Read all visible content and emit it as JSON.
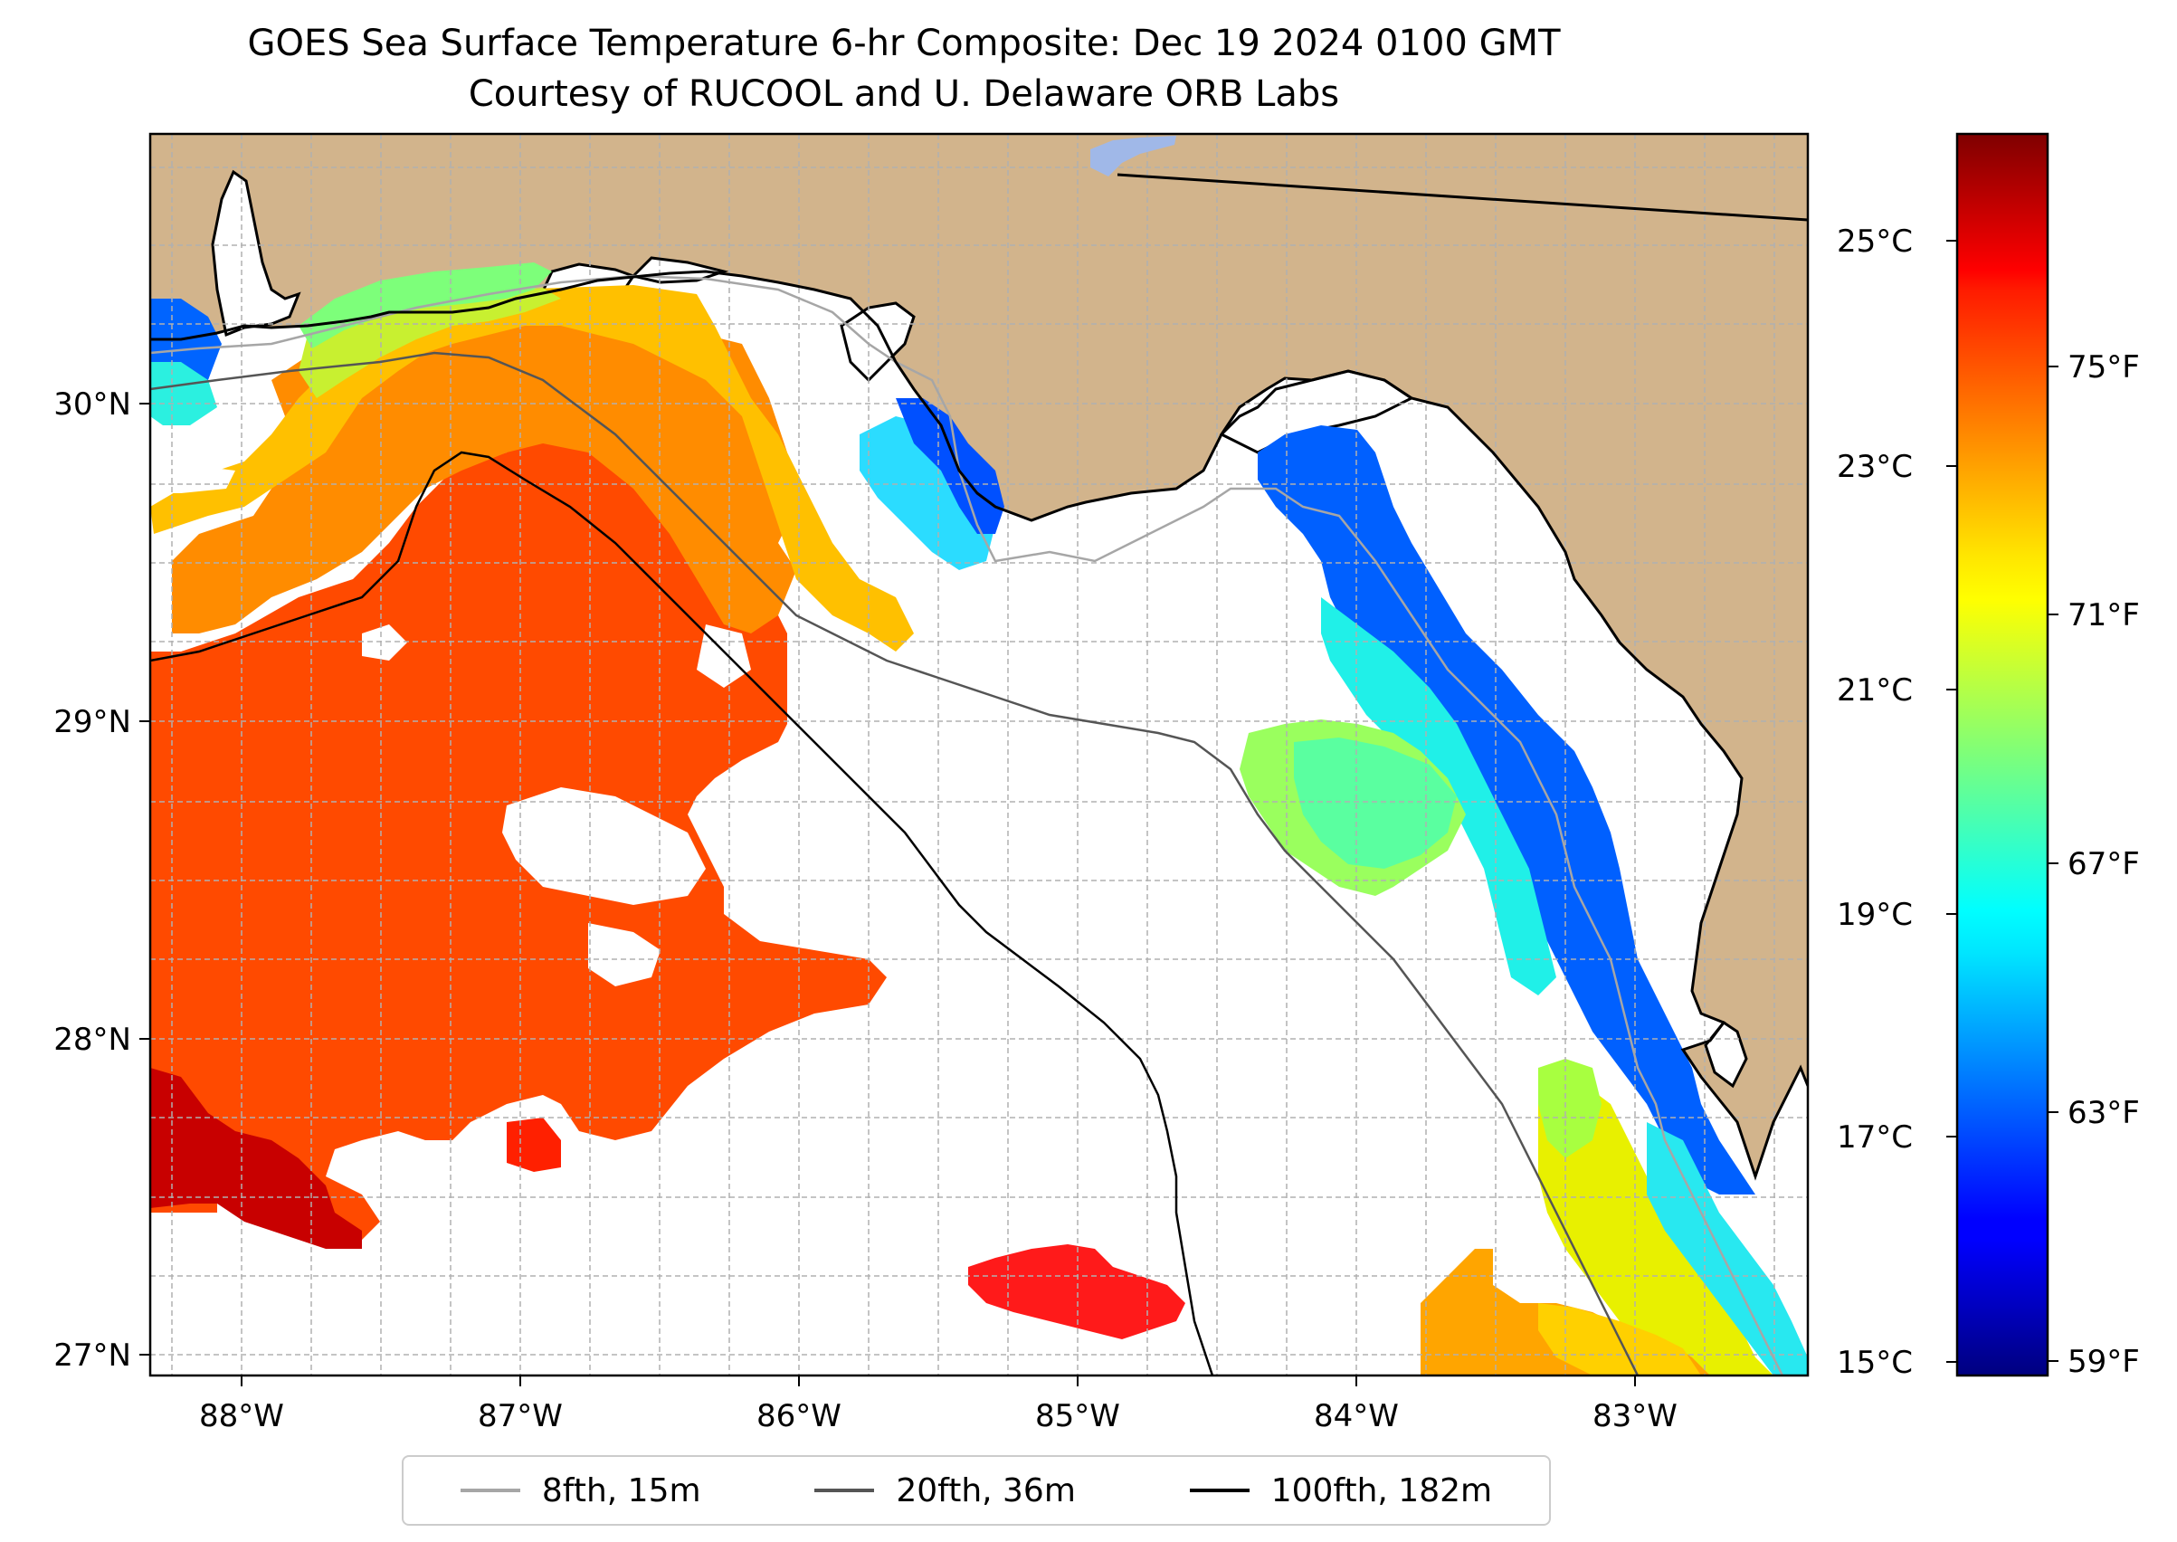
{
  "title": {
    "line1": "GOES Sea Surface Temperature 6-hr Composite: Dec 19 2024 0100 GMT",
    "line2": "Courtesy of RUCOOL and U. Delaware ORB Labs"
  },
  "map": {
    "lon_range": [
      -88.33,
      -82.42
    ],
    "lat_range": [
      26.93,
      30.86
    ],
    "lon_ticks": [
      {
        "value": -88,
        "label": "88°W"
      },
      {
        "value": -87,
        "label": "87°W"
      },
      {
        "value": -86,
        "label": "86°W"
      },
      {
        "value": -85,
        "label": "85°W"
      },
      {
        "value": -84,
        "label": "84°W"
      },
      {
        "value": -83,
        "label": "83°W"
      }
    ],
    "lat_ticks": [
      {
        "value": 27,
        "label": "27°N"
      },
      {
        "value": 28,
        "label": "28°N"
      },
      {
        "value": 29,
        "label": "29°N"
      },
      {
        "value": 30,
        "label": "30°N"
      }
    ],
    "gridlines": true,
    "colors": {
      "land": "#d2b48c",
      "ocean_nodata": "#ffffff",
      "grid": "#b0b0b0"
    }
  },
  "colorbar": {
    "colormap": "jet",
    "celsius_ticks": [
      {
        "value": 15,
        "label": "15°C"
      },
      {
        "value": 17,
        "label": "17°C"
      },
      {
        "value": 19,
        "label": "19°C"
      },
      {
        "value": 21,
        "label": "21°C"
      },
      {
        "value": 23,
        "label": "23°C"
      },
      {
        "value": 25,
        "label": "25°C"
      }
    ],
    "fahrenheit_ticks": [
      {
        "value": 59,
        "label": "59°F"
      },
      {
        "value": 63,
        "label": "63°F"
      },
      {
        "value": 67,
        "label": "67°F"
      },
      {
        "value": 71,
        "label": "71°F"
      },
      {
        "value": 75,
        "label": "75°F"
      }
    ],
    "range_celsius": [
      14.9,
      25.9
    ]
  },
  "legend": {
    "items": [
      {
        "label": "8fth, 15m",
        "color": "#a6a6a6"
      },
      {
        "label": "20fth, 36m",
        "color": "#555555"
      },
      {
        "label": "100fth, 182m",
        "color": "#000000"
      }
    ]
  }
}
